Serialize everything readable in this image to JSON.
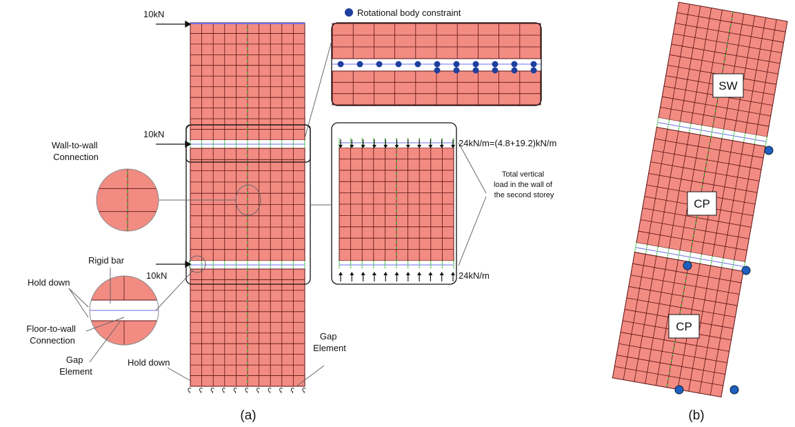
{
  "panel_a": {
    "loads": [
      "10kN",
      "10kN",
      "10kN"
    ],
    "legend": "Rotational body constraint",
    "distributed_load_top": "24kN/m=(4.8+19.2)kN/m",
    "total_load_note": [
      "Total vertical",
      "load in the wall of",
      "the second storey"
    ],
    "distributed_load_bottom": "24kN/m",
    "wall_to_wall": [
      "Wall-to-wall",
      "Connection"
    ],
    "rigid_bar": "Rigid bar",
    "hold_down_inset": "Hold down",
    "floor_to_wall": [
      "Floor-to-wall",
      "Connection"
    ],
    "gap_element_left": [
      "Gap",
      "Element"
    ],
    "hold_down_base": "Hold down",
    "gap_element_base": [
      "Gap",
      "Element"
    ],
    "label": "(a)"
  },
  "panel_b": {
    "wall_labels": [
      "SW",
      "CP",
      "CP"
    ],
    "label": "(b)"
  }
}
